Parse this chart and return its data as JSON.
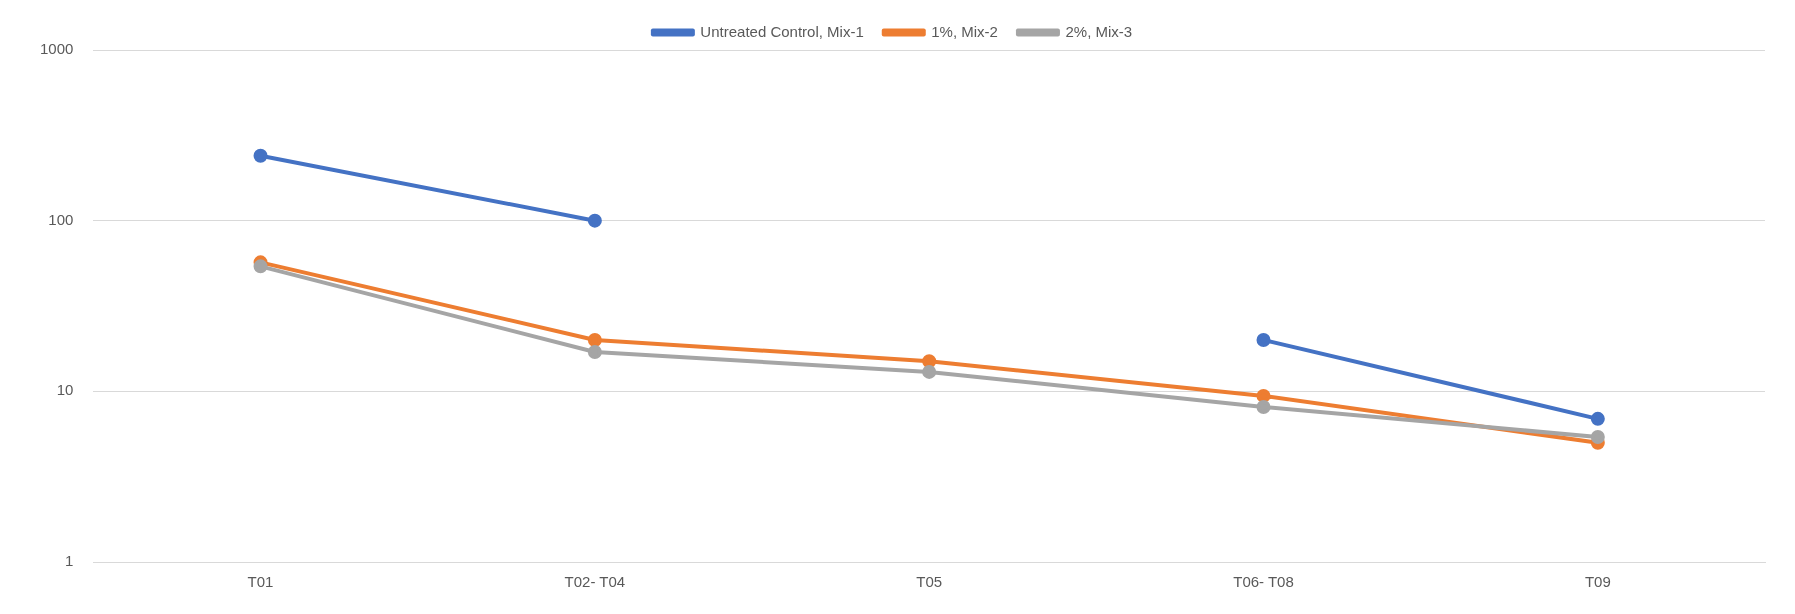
{
  "chart_data": {
    "type": "line",
    "categories": [
      "T01",
      "T02- T04",
      "T05",
      "T06- T08",
      "T09"
    ],
    "series": [
      {
        "name": "Untreated Control, Mix-1",
        "color": "#4472c4",
        "values": [
          240,
          100,
          null,
          20,
          6.9
        ]
      },
      {
        "name": "1%, Mix-2",
        "color": "#ed7d31",
        "values": [
          57,
          20,
          15,
          9.4,
          5
        ]
      },
      {
        "name": "2%, Mix-3",
        "color": "#a5a5a5",
        "values": [
          54,
          17,
          13,
          8.1,
          5.4
        ]
      }
    ],
    "log": true,
    "ylim": [
      1,
      1000
    ],
    "yticks": [
      1,
      10,
      100,
      1000
    ],
    "grid": "y",
    "legend": "top",
    "marker": "circle",
    "line_style": "solid"
  }
}
